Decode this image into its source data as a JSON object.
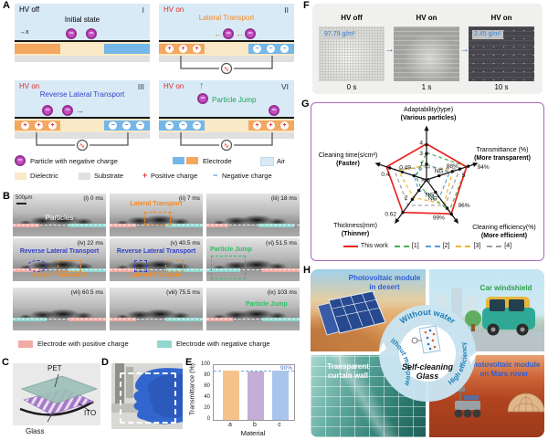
{
  "glyphs": {
    "left_arrow": "←",
    "right_arrow": "→",
    "up_arrow": "↑",
    "x_axis": "→x",
    "plus": "+",
    "minus": "−",
    "ac": "∿"
  },
  "panelA": {
    "label": "A",
    "sub": [
      {
        "num": "I",
        "hv": "HV off",
        "title": "Initial state"
      },
      {
        "num": "II",
        "hv": "HV on",
        "title": "Lateral Transport"
      },
      {
        "num": "III",
        "hv": "HV on",
        "title": "Reverse Lateral Transport"
      },
      {
        "num": "VI",
        "hv": "HV on",
        "title": "Particle Jump"
      }
    ],
    "legend": {
      "particle": "Particle with negative charge",
      "electrode": "Electrode",
      "air": "Air",
      "dielectric": "Dielectric",
      "substrate": "Substrate",
      "positive": "Positive charge",
      "negative": "Negative charge"
    }
  },
  "panelB": {
    "label": "B",
    "scalebar": "500μm",
    "tiles": [
      {
        "t": "(i) 0 ms",
        "ann": "Particles"
      },
      {
        "t": "(ii) 7 ms",
        "ann": "Lateral Transport"
      },
      {
        "t": "(iii) 18 ms"
      },
      {
        "t": "(iv) 22 ms",
        "ann": "Reverse Lateral Transport",
        "ann2": "Lateral Transport"
      },
      {
        "t": "(v) 40.5 ms",
        "ann": "Reverse Lateral Transport",
        "ann2": "Lateral Transport"
      },
      {
        "t": "(vi) 51.5 ms",
        "ann": "Particle Jump"
      },
      {
        "t": "(vii) 60.5 ms"
      },
      {
        "t": "(viii) 75.5 ms"
      },
      {
        "t": "(ix) 103 ms",
        "ann": "Particle Jump"
      }
    ],
    "legend": {
      "positive": "Electrode with positive charge",
      "negative": "Electrode with negative charge"
    }
  },
  "panelC": {
    "label": "C",
    "pet": "PET",
    "ito": "ITO",
    "glass": "Glass"
  },
  "panelD": {
    "label": "D"
  },
  "panelE": {
    "label": "E"
  },
  "panelF": {
    "label": "F",
    "cols": [
      {
        "hv": "HV off",
        "badge": "97.79 g/m²",
        "time": "0 s"
      },
      {
        "hv": "HV on",
        "time": "1 s"
      },
      {
        "hv": "HV on",
        "badge": "2.45 g/m²",
        "time": "10 s"
      }
    ]
  },
  "panelG": {
    "label": "G"
  },
  "panelH": {
    "label": "H",
    "quadrants": [
      {
        "caption": "Photovoltaic module in desert"
      },
      {
        "caption": "Car windshield"
      },
      {
        "caption": "Transparent curtain wall"
      },
      {
        "caption": "Photovoltaic module on Mars rover"
      }
    ],
    "ring": {
      "top": "Without water",
      "left": "Without manpower",
      "right": "High efficiency"
    },
    "center_line1": "Self-cleaning",
    "center_line2": "Glass"
  },
  "chart_data": [
    {
      "id": "transmittance_bar",
      "type": "bar",
      "categories": [
        "a",
        "b",
        "c"
      ],
      "values": [
        90,
        89,
        90
      ],
      "title": "",
      "xlabel": "Material",
      "ylabel": "Transmittance (%)",
      "ylim": [
        0,
        100
      ],
      "yticks": [
        0,
        20,
        40,
        60,
        80,
        100
      ],
      "grid": false,
      "ref_line": {
        "value": 90,
        "label": "90%"
      },
      "bar_colors": [
        "#F6C28B",
        "#C2AED7",
        "#A9C5EC"
      ]
    },
    {
      "id": "performance_radar",
      "type": "radar",
      "legend_position": "bottom",
      "axes": [
        {
          "label": "Adaptability(type)",
          "sub": "(Various particles)",
          "ticks": [
            "1",
            "3",
            "4"
          ]
        },
        {
          "label": "Transmittance (%)",
          "sub": "(More transparent)",
          "ticks": [
            "NG",
            "88%",
            "5",
            "94%"
          ]
        },
        {
          "label": "Cleaning efficiency(%)",
          "sub": "(More efficient)",
          "ticks": [
            "NG",
            "96%",
            "99%"
          ]
        },
        {
          "label": "Thickness(mm)",
          "sub": "(Thinner)",
          "ticks": [
            "NG",
            "2",
            "0.62"
          ]
        },
        {
          "label": "Cleaning time(s/cm²)",
          "sub": "(Faster)",
          "ticks": [
            "NG",
            "0.49",
            "0.4"
          ]
        }
      ],
      "series": [
        {
          "name": "This work",
          "color": "#E8231F",
          "dash": "none",
          "values": [
            0.82,
            0.96,
            0.96,
            0.92,
            0.96
          ]
        },
        {
          "name": "[1]",
          "color": "#4CAF50",
          "dash": "4 3",
          "values": [
            0.62,
            0.97,
            0.88,
            0.22,
            0.25
          ]
        },
        {
          "name": "[2]",
          "color": "#5B9BD5",
          "dash": "4 3",
          "values": [
            0.35,
            0.55,
            0.5,
            0.3,
            0.3
          ]
        },
        {
          "name": "[3]",
          "color": "#F0B429",
          "dash": "4 3",
          "values": [
            0.33,
            0.62,
            0.68,
            0.5,
            0.68
          ]
        },
        {
          "name": "[4]",
          "color": "#9E9E9E",
          "dash": "4 3",
          "values": [
            0.28,
            0.8,
            0.72,
            0.72,
            0.78
          ]
        }
      ]
    }
  ]
}
